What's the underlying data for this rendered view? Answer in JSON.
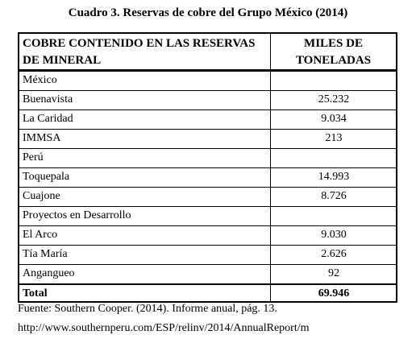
{
  "header": {
    "title": "Cuadro 3. Reservas de cobre del Grupo México (2014)"
  },
  "table": {
    "columns": [
      "COBRE CONTENIDO EN LAS RESERVAS DE MINERAL",
      "MILES DE TONELADAS"
    ],
    "rows": [
      {
        "name": "México"
      },
      {
        "name": "Buenavista",
        "value": "25.232"
      },
      {
        "name": "La Caridad",
        "value": "9.034"
      },
      {
        "name": "IMMSA",
        "value": "213"
      },
      {
        "name": "Perú"
      },
      {
        "name": "Toquepala",
        "value": "14.993"
      },
      {
        "name": "Cuajone",
        "value": "8.726"
      },
      {
        "name": "Proyectos en Desarrollo"
      },
      {
        "name": "El Arco",
        "value": "9.030"
      },
      {
        "name": "Tía María",
        "value": "2.626"
      },
      {
        "name": "Angangueo",
        "value": "92"
      }
    ],
    "total": {
      "name": "Total",
      "value": "69.946"
    }
  },
  "footer": {
    "source": "Fuente: Southern Cooper. (2014). Informe anual, pág. 13.",
    "url": "http://www.southernperu.com/ESP/relinv/2014/AnnualReport/m"
  }
}
